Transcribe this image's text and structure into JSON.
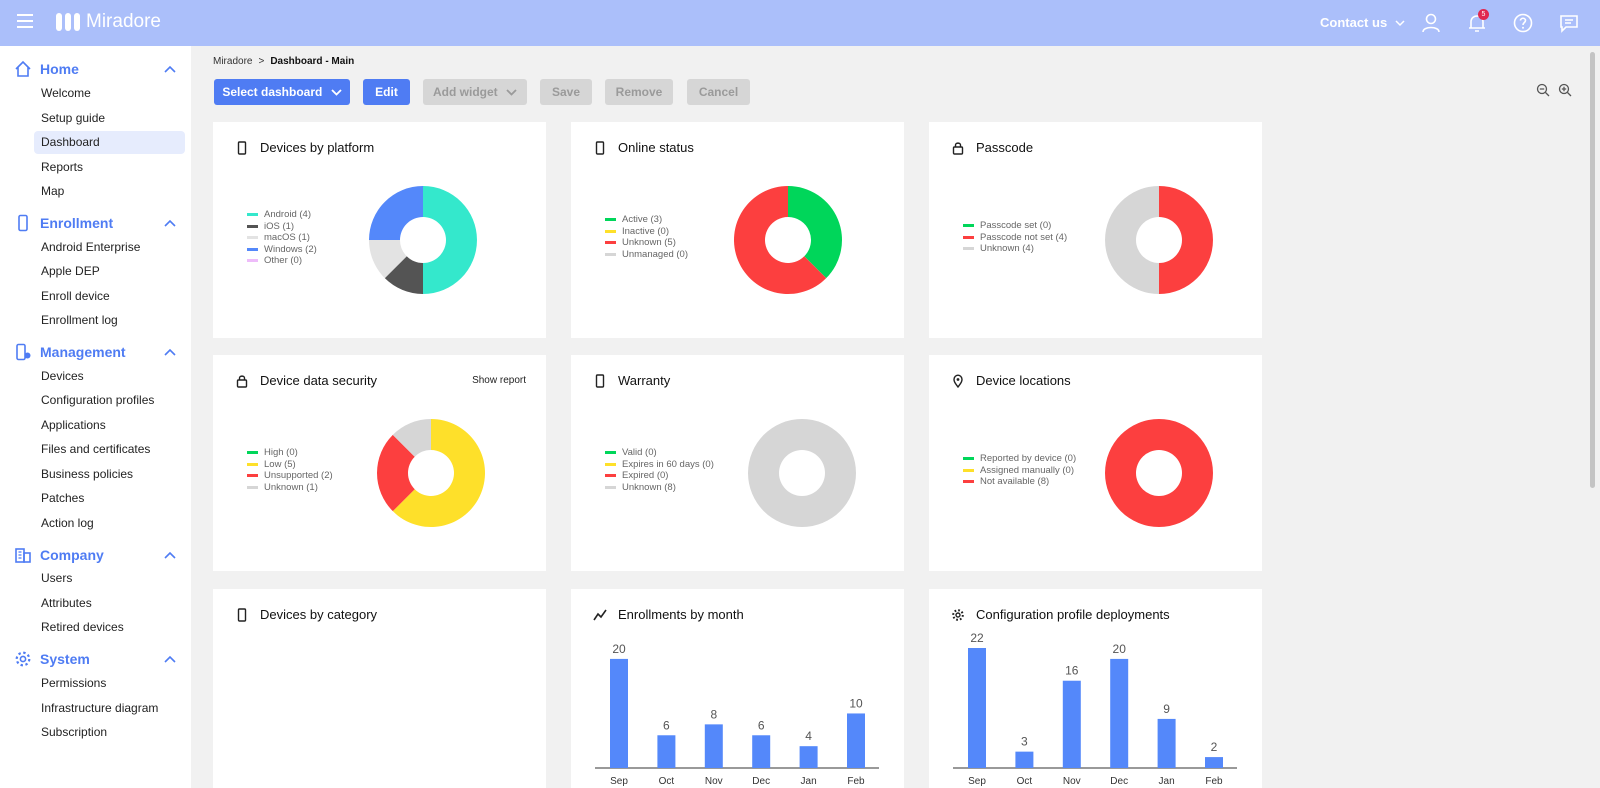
{
  "app": {
    "name": "Miradore",
    "contact": "Contact us",
    "notifications_count": "5"
  },
  "icons": {
    "menu": "hamburger-icon",
    "user": "user-icon",
    "bell": "bell-icon",
    "help": "help-icon",
    "chat": "chat-icon"
  },
  "colors": {
    "accent": "#4f7cf3",
    "topbar": "#abbffa",
    "green": "#00d65a",
    "red": "#fc3f3f",
    "yellow": "#fee02a",
    "gray": "#d6d6d6",
    "teal": "#34e8cc",
    "dark": "#545454",
    "blue": "#5488fa",
    "pink": "#eebcfa"
  },
  "sidebar": {
    "sections": [
      {
        "label": "Home",
        "icon": "home-icon",
        "items": [
          "Welcome",
          "Setup guide",
          "Dashboard",
          "Reports",
          "Map"
        ]
      },
      {
        "label": "Enrollment",
        "icon": "phone-icon",
        "items": [
          "Android Enterprise",
          "Apple DEP",
          "Enroll device",
          "Enrollment log"
        ]
      },
      {
        "label": "Management",
        "icon": "device-settings-icon",
        "items": [
          "Devices",
          "Configuration profiles",
          "Applications",
          "Files and certificates",
          "Business policies",
          "Patches",
          "Action log"
        ]
      },
      {
        "label": "Company",
        "icon": "building-icon",
        "items": [
          "Users",
          "Attributes",
          "Retired devices"
        ]
      },
      {
        "label": "System",
        "icon": "gear-icon",
        "items": [
          "Permissions",
          "Infrastructure diagram",
          "Subscription"
        ]
      }
    ],
    "active_item": "Dashboard"
  },
  "breadcrumb": {
    "root": "Miradore",
    "separator": ">",
    "current": "Dashboard - Main"
  },
  "toolbar": {
    "select_dashboard": "Select dashboard",
    "edit": "Edit",
    "add_widget": "Add widget",
    "save": "Save",
    "remove": "Remove",
    "cancel": "Cancel"
  },
  "widgets": {
    "platform": {
      "title": "Devices by platform",
      "icon": "phone-icon",
      "legend": [
        "Android (4)",
        "iOS (1)",
        "macOS (1)",
        "Windows (2)",
        "Other (0)"
      ],
      "values": [
        4,
        1,
        1,
        2,
        0
      ],
      "colors": [
        "#34e8cc",
        "#545454",
        "#e3e3e3",
        "#5488fa",
        "#eebcfa"
      ]
    },
    "online": {
      "title": "Online status",
      "icon": "phone-icon",
      "legend": [
        "Active (3)",
        "Inactive (0)",
        "Unknown (5)",
        "Unmanaged (0)"
      ],
      "values": [
        3,
        0,
        5,
        0
      ],
      "colors": [
        "#00d65a",
        "#fee02a",
        "#fc3f3f",
        "#d6d6d6"
      ]
    },
    "passcode": {
      "title": "Passcode",
      "icon": "lock-icon",
      "legend": [
        "Passcode set (0)",
        "Passcode not set (4)",
        "Unknown (4)"
      ],
      "values": [
        0,
        4,
        4
      ],
      "colors": [
        "#00d65a",
        "#fc3f3f",
        "#d6d6d6"
      ]
    },
    "security": {
      "title": "Device data security",
      "icon": "lock-icon",
      "action": "Show report",
      "legend": [
        "High (0)",
        "Low (5)",
        "Unsupported (2)",
        "Unknown (1)"
      ],
      "values": [
        0,
        5,
        2,
        1
      ],
      "colors": [
        "#00d65a",
        "#fee02a",
        "#fc3f3f",
        "#d6d6d6"
      ]
    },
    "warranty": {
      "title": "Warranty",
      "icon": "phone-icon",
      "legend": [
        "Valid (0)",
        "Expires in 60 days (0)",
        "Expired (0)",
        "Unknown (8)"
      ],
      "values": [
        0,
        0,
        0,
        8
      ],
      "colors": [
        "#00d65a",
        "#fee02a",
        "#fc3f3f",
        "#d6d6d6"
      ]
    },
    "locations": {
      "title": "Device locations",
      "icon": "location-pin-icon",
      "legend": [
        "Reported by device (0)",
        "Assigned manually (0)",
        "Not available (8)"
      ],
      "values": [
        0,
        0,
        8
      ],
      "colors": [
        "#00d65a",
        "#fee02a",
        "#fc3f3f"
      ]
    },
    "category": {
      "title": "Devices by category",
      "icon": "phone-icon"
    },
    "enrollments": {
      "title": "Enrollments by month",
      "icon": "trend-line-icon"
    },
    "profiles": {
      "title": "Configuration profile deployments",
      "icon": "gear-icon"
    }
  },
  "chart_data": [
    {
      "type": "pie",
      "categories": [
        "Android",
        "iOS",
        "macOS",
        "Windows",
        "Other"
      ],
      "values": [
        4,
        1,
        1,
        2,
        0
      ],
      "title": "Devices by platform"
    },
    {
      "type": "pie",
      "categories": [
        "Active",
        "Inactive",
        "Unknown",
        "Unmanaged"
      ],
      "values": [
        3,
        0,
        5,
        0
      ],
      "title": "Online status"
    },
    {
      "type": "pie",
      "categories": [
        "Passcode set",
        "Passcode not set",
        "Unknown"
      ],
      "values": [
        0,
        4,
        4
      ],
      "title": "Passcode"
    },
    {
      "type": "pie",
      "categories": [
        "High",
        "Low",
        "Unsupported",
        "Unknown"
      ],
      "values": [
        0,
        5,
        2,
        1
      ],
      "title": "Device data security"
    },
    {
      "type": "pie",
      "categories": [
        "Valid",
        "Expires in 60 days",
        "Expired",
        "Unknown"
      ],
      "values": [
        0,
        0,
        0,
        8
      ],
      "title": "Warranty"
    },
    {
      "type": "pie",
      "categories": [
        "Reported by device",
        "Assigned manually",
        "Not available"
      ],
      "values": [
        0,
        0,
        8
      ],
      "title": "Device locations"
    },
    {
      "type": "bar",
      "categories": [
        "Sep",
        "Oct",
        "Nov",
        "Dec",
        "Jan",
        "Feb"
      ],
      "values": [
        20,
        6,
        8,
        6,
        4,
        10
      ],
      "title": "Enrollments by month"
    },
    {
      "type": "bar",
      "categories": [
        "Sep",
        "Oct",
        "Nov",
        "Dec",
        "Jan",
        "Feb"
      ],
      "values": [
        22,
        3,
        16,
        20,
        9,
        2
      ],
      "title": "Configuration profile deployments"
    }
  ]
}
